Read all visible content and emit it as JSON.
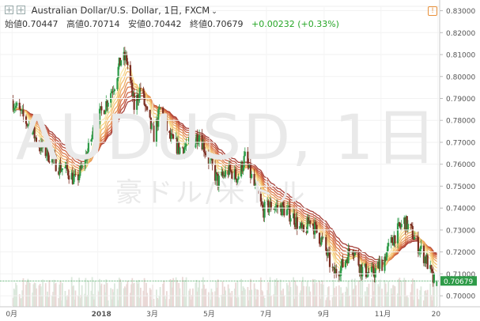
{
  "header": {
    "title": "Australian Dollar/U.S. Dollar, 1日, FXCM",
    "open_label": "始値",
    "open": "0.70447",
    "high_label": "高値",
    "high": "0.70714",
    "low_label": "安値",
    "low": "0.70442",
    "close_label": "終値",
    "close": "0.70679",
    "change": "+0.00232 (+0.33%)"
  },
  "watermark": {
    "symbol": "AUDUSD, 1日",
    "name": "豪ドル/米ドル"
  },
  "colors": {
    "up": "#2e9b48",
    "down": "#7c2f22",
    "price_line": "#2e9b48",
    "ribbon": [
      "#f7e08a",
      "#f2b46a",
      "#e5854d",
      "#c9543a",
      "#9c2f2a"
    ],
    "volume": "#d8d8d8"
  },
  "chart_data": {
    "type": "candlestick",
    "title": "Australian Dollar/U.S. Dollar, 1日, FXCM",
    "ylim": [
      0.695,
      0.832
    ],
    "y_ticks": [
      "0.83000",
      "0.82000",
      "0.81000",
      "0.80000",
      "0.79000",
      "0.78000",
      "0.77000",
      "0.76000",
      "0.75000",
      "0.74000",
      "0.73000",
      "0.72000",
      "0.71000",
      "0.70000"
    ],
    "x_ticks": [
      "0月",
      "2018",
      "3月",
      "5月",
      "7月",
      "9月",
      "11月",
      "20"
    ],
    "last_price": "0.70679",
    "close_path": [
      [
        "2017-10-01",
        0.789
      ],
      [
        "2017-10-10",
        0.783
      ],
      [
        "2017-10-20",
        0.777
      ],
      [
        "2017-10-31",
        0.768
      ],
      [
        "2017-11-10",
        0.764
      ],
      [
        "2017-11-20",
        0.759
      ],
      [
        "2017-11-30",
        0.757
      ],
      [
        "2017-12-08",
        0.752
      ],
      [
        "2017-12-15",
        0.758
      ],
      [
        "2017-12-22",
        0.767
      ],
      [
        "2017-12-29",
        0.778
      ],
      [
        "2018-01-10",
        0.788
      ],
      [
        "2018-01-19",
        0.797
      ],
      [
        "2018-01-26",
        0.808
      ],
      [
        "2018-02-01",
        0.808
      ],
      [
        "2018-02-09",
        0.786
      ],
      [
        "2018-02-16",
        0.795
      ],
      [
        "2018-02-23",
        0.782
      ],
      [
        "2018-03-02",
        0.773
      ],
      [
        "2018-03-09",
        0.785
      ],
      [
        "2018-03-19",
        0.772
      ],
      [
        "2018-03-29",
        0.767
      ],
      [
        "2018-04-10",
        0.769
      ],
      [
        "2018-04-20",
        0.774
      ],
      [
        "2018-04-30",
        0.762
      ],
      [
        "2018-05-10",
        0.752
      ],
      [
        "2018-05-21",
        0.757
      ],
      [
        "2018-05-31",
        0.754
      ],
      [
        "2018-06-08",
        0.763
      ],
      [
        "2018-06-18",
        0.75
      ],
      [
        "2018-06-27",
        0.739
      ],
      [
        "2018-07-06",
        0.741
      ],
      [
        "2018-07-18",
        0.74
      ],
      [
        "2018-07-30",
        0.736
      ],
      [
        "2018-08-10",
        0.728
      ],
      [
        "2018-08-17",
        0.735
      ],
      [
        "2018-08-24",
        0.729
      ],
      [
        "2018-08-31",
        0.724
      ],
      [
        "2018-09-11",
        0.71
      ],
      [
        "2018-09-21",
        0.714
      ],
      [
        "2018-10-01",
        0.723
      ],
      [
        "2018-10-11",
        0.712
      ],
      [
        "2018-10-23",
        0.71
      ],
      [
        "2018-11-02",
        0.715
      ],
      [
        "2018-11-15",
        0.727
      ],
      [
        "2018-11-26",
        0.734
      ],
      [
        "2018-12-04",
        0.729
      ],
      [
        "2018-12-12",
        0.722
      ],
      [
        "2018-12-20",
        0.716
      ],
      [
        "2018-12-27",
        0.707
      ],
      [
        "2018-12-31",
        0.707
      ]
    ],
    "ribbon_lines": 9,
    "volume": true
  }
}
